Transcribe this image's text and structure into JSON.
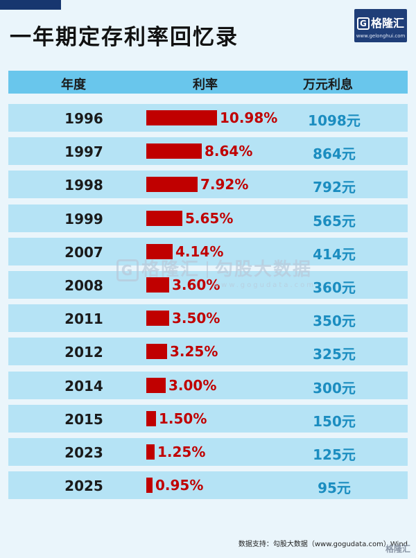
{
  "title": "一年期定存利率回忆录",
  "logo": {
    "name": "格隆汇",
    "icon": "G",
    "url": "www.gelonghui.com"
  },
  "headers": {
    "year": "年度",
    "rate": "利率",
    "interest": "万元利息"
  },
  "chart_data": {
    "type": "bar",
    "title": "一年期定存利率回忆录",
    "categories": [
      "1996",
      "1997",
      "1998",
      "1999",
      "2007",
      "2008",
      "2011",
      "2012",
      "2014",
      "2015",
      "2023",
      "2025"
    ],
    "series": [
      {
        "name": "利率",
        "values": [
          10.98,
          8.64,
          7.92,
          5.65,
          4.14,
          3.6,
          3.5,
          3.25,
          3.0,
          1.5,
          1.25,
          0.95
        ]
      }
    ],
    "value_labels": [
      "10.98%",
      "8.64%",
      "7.92%",
      "5.65%",
      "4.14%",
      "3.60%",
      "3.50%",
      "3.25%",
      "3.00%",
      "1.50%",
      "1.25%",
      "0.95%"
    ],
    "interest_labels": [
      "1098元",
      "864元",
      "792元",
      "565元",
      "414元",
      "360元",
      "350元",
      "325元",
      "300元",
      "150元",
      "125元",
      "95元"
    ],
    "xlabel": "年度",
    "ylabel": "利率",
    "ylim": [
      0,
      11
    ]
  },
  "watermark": {
    "brand": "格隆汇",
    "partner": "勾股大数据",
    "url": "www.gogudata.com"
  },
  "source": "数据支持：勾股大数据（www.gogudata.com）Wind",
  "bottom_logo": "格隆汇",
  "colors": {
    "bar": "#c00000",
    "header_bg": "#69c6ec",
    "row_bg": "#b5e3f5",
    "interest": "#1b8dc0",
    "brand": "#1f3e78"
  }
}
